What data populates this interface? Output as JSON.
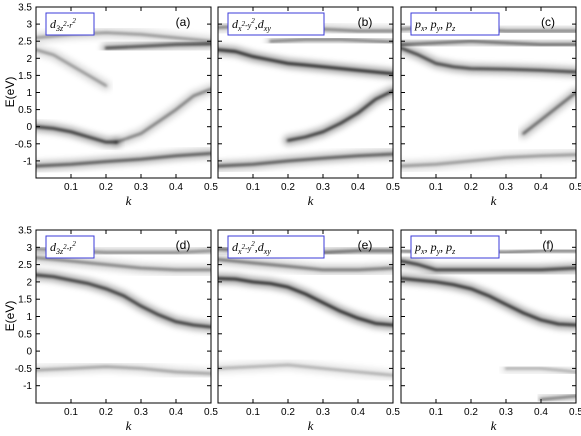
{
  "figure": {
    "ylabel": "E(eV)",
    "xlabel": "k"
  },
  "chart_data": [
    {
      "type": "heatmap",
      "panel": "(a)",
      "legend": "d3z2-r2",
      "xlim": [
        0,
        0.5
      ],
      "ylim": [
        -1.5,
        3.5
      ],
      "xticks": [
        "0.1",
        "0.2",
        "0.3",
        "0.4",
        "0.5"
      ],
      "yticks": [
        "-1",
        "-0.5",
        "0",
        "0.5",
        "1",
        "1.5",
        "2",
        "2.5",
        "3",
        "3.5"
      ],
      "bands": [
        {
          "name": "b1",
          "x": [
            0,
            0.1,
            0.2,
            0.3,
            0.4,
            0.5
          ],
          "y": [
            -1.15,
            -1.1,
            -1.02,
            -0.95,
            -0.85,
            -0.78
          ],
          "weight": 0.7
        },
        {
          "name": "b2",
          "x": [
            0,
            0.05,
            0.1,
            0.15,
            0.2,
            0.23
          ],
          "y": [
            0,
            -0.05,
            -0.15,
            -0.3,
            -0.45,
            -0.45
          ],
          "weight": 0.85
        },
        {
          "name": "b3",
          "x": [
            0.23,
            0.3,
            0.35,
            0.4,
            0.45,
            0.5
          ],
          "y": [
            -0.45,
            -0.2,
            0.15,
            0.5,
            0.9,
            1.1
          ],
          "weight": 0.5
        },
        {
          "name": "b4",
          "x": [
            0,
            0.05,
            0.1,
            0.15,
            0.2
          ],
          "y": [
            2.25,
            2.1,
            1.8,
            1.5,
            1.2
          ],
          "weight": 0.4
        },
        {
          "name": "b5",
          "x": [
            0.2,
            0.3,
            0.4,
            0.5
          ],
          "y": [
            2.3,
            2.35,
            2.4,
            2.42
          ],
          "weight": 0.75
        },
        {
          "name": "b6",
          "x": [
            0,
            0.1,
            0.2,
            0.3,
            0.4,
            0.5
          ],
          "y": [
            2.6,
            2.7,
            2.75,
            2.7,
            2.6,
            2.5
          ],
          "weight": 0.4
        }
      ]
    },
    {
      "type": "heatmap",
      "panel": "(b)",
      "legend": "dx2-y2,dxy",
      "xlim": [
        0,
        0.5
      ],
      "ylim": [
        -1.5,
        3.5
      ],
      "xticks": [
        "0.1",
        "0.2",
        "0.3",
        "0.4",
        "0.5"
      ],
      "yticks": [],
      "bands": [
        {
          "name": "b1",
          "x": [
            0,
            0.1,
            0.2,
            0.3,
            0.4,
            0.5
          ],
          "y": [
            -1.15,
            -1.1,
            -1.0,
            -0.92,
            -0.85,
            -0.8
          ],
          "weight": 0.7
        },
        {
          "name": "b2",
          "x": [
            0.2,
            0.25,
            0.3,
            0.35,
            0.4,
            0.45,
            0.5
          ],
          "y": [
            -0.4,
            -0.3,
            -0.15,
            0.1,
            0.4,
            0.8,
            1.05
          ],
          "weight": 0.85
        },
        {
          "name": "b3",
          "x": [
            0,
            0.05,
            0.1,
            0.15,
            0.2,
            0.25,
            0.3,
            0.4,
            0.5
          ],
          "y": [
            2.25,
            2.2,
            2.05,
            1.95,
            1.85,
            1.8,
            1.75,
            1.65,
            1.55
          ],
          "weight": 0.95
        },
        {
          "name": "b4",
          "x": [
            0.15,
            0.25,
            0.35,
            0.45,
            0.5
          ],
          "y": [
            2.5,
            2.55,
            2.55,
            2.5,
            2.48
          ],
          "weight": 0.5
        },
        {
          "name": "b5",
          "x": [
            0,
            0.1,
            0.2,
            0.3,
            0.4,
            0.5
          ],
          "y": [
            2.9,
            2.95,
            2.9,
            2.85,
            2.8,
            2.8
          ],
          "weight": 0.5
        }
      ]
    },
    {
      "type": "heatmap",
      "panel": "(c)",
      "legend": "px, py, pz",
      "xlim": [
        0,
        0.5
      ],
      "ylim": [
        -1.5,
        3.5
      ],
      "xticks": [
        "0.1",
        "0.2",
        "0.3",
        "0.4",
        "0.5"
      ],
      "yticks": [],
      "bands": [
        {
          "name": "b1",
          "x": [
            0,
            0.1,
            0.2,
            0.3,
            0.4,
            0.5
          ],
          "y": [
            -1.15,
            -1.1,
            -1.0,
            -0.9,
            -0.85,
            -0.82
          ],
          "weight": 0.4
        },
        {
          "name": "b2",
          "x": [
            0.35,
            0.4,
            0.45,
            0.5
          ],
          "y": [
            -0.2,
            0.2,
            0.6,
            1.0
          ],
          "weight": 0.6
        },
        {
          "name": "b3",
          "x": [
            0,
            0.05,
            0.1,
            0.15,
            0.2,
            0.3,
            0.4,
            0.5
          ],
          "y": [
            2.3,
            2.1,
            1.85,
            1.75,
            1.7,
            1.68,
            1.65,
            1.6
          ],
          "weight": 0.8
        },
        {
          "name": "b4",
          "x": [
            0,
            0.1,
            0.2,
            0.3,
            0.4,
            0.5
          ],
          "y": [
            2.4,
            2.45,
            2.5,
            2.45,
            2.4,
            2.4
          ],
          "weight": 0.6
        },
        {
          "name": "b5",
          "x": [
            0,
            0.1,
            0.2,
            0.3,
            0.4,
            0.5
          ],
          "y": [
            2.85,
            2.9,
            2.85,
            2.8,
            2.8,
            2.8
          ],
          "weight": 0.5
        }
      ]
    },
    {
      "type": "heatmap",
      "panel": "(d)",
      "legend": "d3z2-r2",
      "xlim": [
        0,
        0.5
      ],
      "ylim": [
        -1.5,
        3.5
      ],
      "xticks": [
        "0.1",
        "0.2",
        "0.3",
        "0.4",
        "0.5"
      ],
      "yticks": [
        "-1",
        "-0.5",
        "0",
        "0.5",
        "1",
        "1.5",
        "2",
        "2.5",
        "3",
        "3.5"
      ],
      "bands": [
        {
          "name": "b1",
          "x": [
            0,
            0.1,
            0.2,
            0.3,
            0.4,
            0.5
          ],
          "y": [
            -0.55,
            -0.5,
            -0.45,
            -0.5,
            -0.6,
            -0.65
          ],
          "weight": 0.35
        },
        {
          "name": "b2",
          "x": [
            0,
            0.05,
            0.1,
            0.15,
            0.2,
            0.25,
            0.3,
            0.35,
            0.4,
            0.45,
            0.5
          ],
          "y": [
            2.2,
            2.15,
            2.05,
            1.95,
            1.8,
            1.6,
            1.3,
            1.05,
            0.85,
            0.75,
            0.7
          ],
          "weight": 0.85
        },
        {
          "name": "b3",
          "x": [
            0,
            0.1,
            0.2,
            0.3,
            0.4,
            0.5
          ],
          "y": [
            2.7,
            2.6,
            2.5,
            2.4,
            2.35,
            2.35
          ],
          "weight": 0.5
        },
        {
          "name": "b4",
          "x": [
            0,
            0.1,
            0.2,
            0.3,
            0.4,
            0.5
          ],
          "y": [
            2.95,
            2.9,
            2.85,
            2.85,
            2.85,
            2.9
          ],
          "weight": 0.45
        }
      ]
    },
    {
      "type": "heatmap",
      "panel": "(e)",
      "legend": "dx2-y2,dxy",
      "xlim": [
        0,
        0.5
      ],
      "ylim": [
        -1.5,
        3.5
      ],
      "xticks": [
        "0.1",
        "0.2",
        "0.3",
        "0.4",
        "0.5"
      ],
      "yticks": [],
      "bands": [
        {
          "name": "b1",
          "x": [
            0,
            0.1,
            0.2,
            0.3,
            0.4,
            0.5
          ],
          "y": [
            -0.5,
            -0.45,
            -0.4,
            -0.5,
            -0.6,
            -0.7
          ],
          "weight": 0.3
        },
        {
          "name": "b2",
          "x": [
            0.35,
            0.4,
            0.45,
            0.5
          ],
          "y": [
            -0.2,
            -0.2,
            -0.2,
            -0.2
          ],
          "weight": 0.4
        },
        {
          "name": "b3",
          "x": [
            0,
            0.05,
            0.1,
            0.15,
            0.2,
            0.25,
            0.3,
            0.35,
            0.4,
            0.45,
            0.5
          ],
          "y": [
            2.1,
            2.08,
            2.0,
            1.95,
            1.85,
            1.65,
            1.4,
            1.15,
            0.95,
            0.8,
            0.75
          ],
          "weight": 0.95
        },
        {
          "name": "b4",
          "x": [
            0,
            0.1,
            0.2,
            0.3,
            0.4,
            0.5
          ],
          "y": [
            2.65,
            2.55,
            2.45,
            2.35,
            2.35,
            2.4
          ],
          "weight": 0.55
        },
        {
          "name": "b5",
          "x": [
            0,
            0.1,
            0.2,
            0.3,
            0.4,
            0.5
          ],
          "y": [
            2.95,
            2.9,
            2.85,
            2.85,
            2.9,
            2.9
          ],
          "weight": 0.6
        }
      ]
    },
    {
      "type": "heatmap",
      "panel": "(f)",
      "legend": "px, py, pz",
      "xlim": [
        0,
        0.5
      ],
      "ylim": [
        -1.5,
        3.5
      ],
      "xticks": [
        "0.1",
        "0.2",
        "0.3",
        "0.4",
        "0.5"
      ],
      "yticks": [],
      "bands": [
        {
          "name": "b1",
          "x": [
            0.3,
            0.4,
            0.45,
            0.5
          ],
          "y": [
            -0.5,
            -0.5,
            -0.55,
            -0.6
          ],
          "weight": 0.3
        },
        {
          "name": "b2",
          "x": [
            0.4,
            0.45,
            0.5
          ],
          "y": [
            -1.4,
            -1.35,
            -1.3
          ],
          "weight": 0.5
        },
        {
          "name": "b3",
          "x": [
            0,
            0.05,
            0.1,
            0.15,
            0.2,
            0.25,
            0.3,
            0.35,
            0.4,
            0.45,
            0.5
          ],
          "y": [
            2.1,
            2.05,
            2.0,
            1.92,
            1.8,
            1.6,
            1.35,
            1.1,
            0.9,
            0.78,
            0.75
          ],
          "weight": 0.9
        },
        {
          "name": "b4",
          "x": [
            0,
            0.05,
            0.1,
            0.2,
            0.3,
            0.4,
            0.5
          ],
          "y": [
            2.6,
            2.5,
            2.35,
            2.35,
            2.35,
            2.35,
            2.4
          ],
          "weight": 0.85
        },
        {
          "name": "b5",
          "x": [
            0,
            0.1,
            0.2,
            0.3,
            0.4,
            0.5
          ],
          "y": [
            2.9,
            2.85,
            2.85,
            2.85,
            2.9,
            2.9
          ],
          "weight": 0.5
        }
      ]
    }
  ]
}
